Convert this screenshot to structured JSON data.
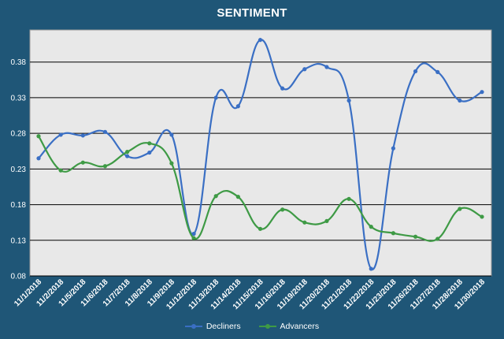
{
  "chart_data": {
    "type": "line",
    "title": "SENTIMENT",
    "xlabel": "",
    "ylabel": "",
    "categories": [
      "11/1/2018",
      "11/2/2018",
      "11/5/2018",
      "11/6/2018",
      "11/7/2018",
      "11/8/2018",
      "11/9/2018",
      "11/12/2018",
      "11/13/2018",
      "11/14/2018",
      "11/15/2018",
      "11/16/2018",
      "11/19/2018",
      "11/20/2018",
      "11/21/2018",
      "11/22/2018",
      "11/23/2018",
      "11/26/2018",
      "11/27/2018",
      "11/28/2018",
      "11/30/2018"
    ],
    "series": [
      {
        "name": "Decliners",
        "color": "#3a6fc4",
        "values": [
          0.245,
          0.278,
          0.277,
          0.282,
          0.248,
          0.253,
          0.278,
          0.139,
          0.33,
          0.318,
          0.411,
          0.343,
          0.37,
          0.373,
          0.326,
          0.09,
          0.259,
          0.367,
          0.366,
          0.326,
          0.338
        ]
      },
      {
        "name": "Advancers",
        "color": "#3e9a45",
        "values": [
          0.276,
          0.228,
          0.239,
          0.234,
          0.254,
          0.266,
          0.238,
          0.133,
          0.192,
          0.191,
          0.146,
          0.173,
          0.155,
          0.157,
          0.188,
          0.149,
          0.14,
          0.135,
          0.132,
          0.174,
          0.163
        ]
      }
    ],
    "yticks": [
      "0.08",
      "0.13",
      "0.18",
      "0.23",
      "0.28",
      "0.33",
      "0.38"
    ],
    "ylim": [
      0.08,
      0.425
    ],
    "grid": true,
    "legend_position": "bottom"
  }
}
